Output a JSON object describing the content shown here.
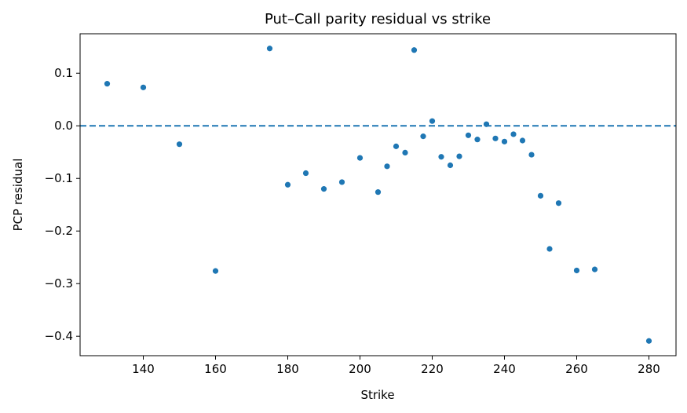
{
  "chart_data": {
    "type": "scatter",
    "title": "Put–Call parity residual vs strike",
    "xlabel": "Strike",
    "ylabel": "PCP residual",
    "xlim": [
      122.5,
      287.5
    ],
    "ylim": [
      -0.437,
      0.175
    ],
    "xticks": [
      140,
      160,
      180,
      200,
      220,
      240,
      260,
      280
    ],
    "yticks": [
      0.1,
      0.0,
      -0.1,
      -0.2,
      -0.3,
      -0.4
    ],
    "ytick_labels": [
      "0.1",
      "0.0",
      "−0.1",
      "−0.2",
      "−0.3",
      "−0.4"
    ],
    "grid": false,
    "reference_line": {
      "y": 0.0,
      "style": "dashed"
    },
    "colors": {
      "points": "#1f77b4",
      "reference_line": "#1f77b4"
    },
    "series": [
      {
        "x": [
          130,
          140,
          150,
          160,
          175,
          180,
          185,
          190,
          195,
          200,
          205,
          207.5,
          210,
          212.5,
          215,
          217.5,
          220,
          222.5,
          225,
          227.5,
          230,
          232.5,
          235,
          237.5,
          240,
          242.5,
          245,
          247.5,
          250,
          252.5,
          255,
          260,
          265,
          280
        ],
        "y": [
          0.08,
          0.073,
          -0.035,
          -0.276,
          0.147,
          -0.112,
          -0.09,
          -0.12,
          -0.107,
          -0.061,
          -0.126,
          -0.077,
          -0.039,
          -0.051,
          0.144,
          -0.02,
          0.009,
          -0.059,
          -0.075,
          -0.058,
          -0.018,
          -0.026,
          0.003,
          -0.024,
          -0.03,
          -0.016,
          -0.028,
          -0.055,
          -0.133,
          -0.234,
          -0.147,
          -0.275,
          -0.273,
          -0.409
        ]
      }
    ]
  }
}
